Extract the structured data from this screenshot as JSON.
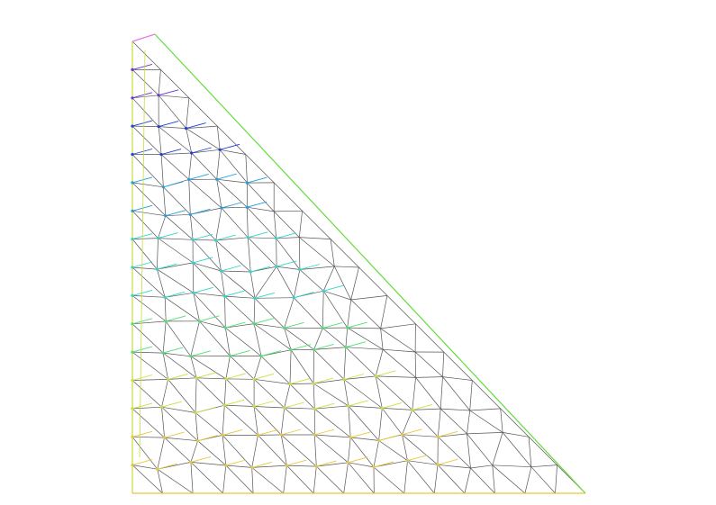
{
  "figure": {
    "kind": "triangular finite-element mesh with colored overlay",
    "mesh_color": "#555555",
    "boundary_left_color": "#c8dc3c",
    "boundary_bottom_color": "#e6c83c",
    "boundary_hypotenuse_color": "#64dc3c",
    "top_marker_color": "#e678e6",
    "gradient_colors": [
      "#6a2fd6",
      "#1f3fd6",
      "#1f9fe0",
      "#2fd6c8",
      "#4fe070",
      "#c8e03c",
      "#e6c83c"
    ],
    "rows_vertical": 16,
    "cols_bottom": 15
  }
}
